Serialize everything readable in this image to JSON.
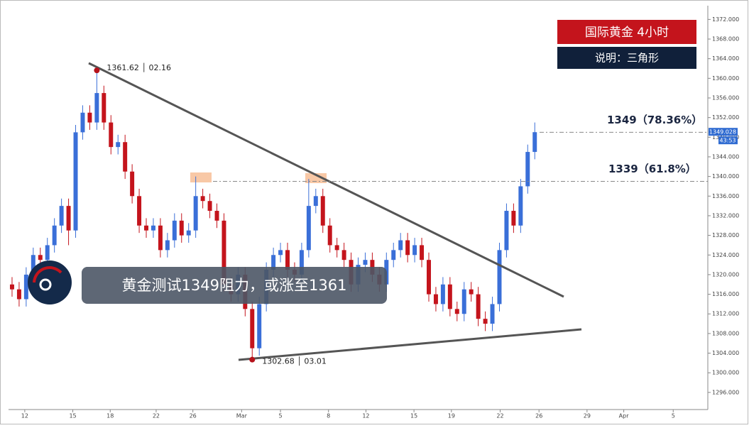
{
  "chart_data": {
    "type": "candlestick",
    "title": "国际黄金  4小时",
    "subtitle": "说明：三角形",
    "headline": "黄金测试1349阻力，或涨至1361",
    "x": [
      0,
      1,
      2,
      3,
      4,
      5,
      6,
      7,
      8,
      9,
      10,
      11,
      12,
      13,
      14,
      15,
      16,
      17,
      18,
      19,
      20,
      21,
      22,
      23,
      24,
      25,
      26,
      27,
      28,
      29,
      30,
      31,
      32,
      33,
      34,
      35,
      36,
      37,
      38,
      39,
      40,
      41,
      42,
      43,
      44,
      45,
      46,
      47,
      48,
      49,
      50,
      51,
      52,
      53,
      54,
      55,
      56,
      57,
      58,
      59,
      60,
      61,
      62,
      63,
      64,
      65,
      66,
      67,
      68,
      69,
      70,
      71,
      72,
      73,
      74
    ],
    "open": [
      1318,
      1317,
      1315,
      1320,
      1324,
      1323,
      1326,
      1330,
      1334,
      1329,
      1349,
      1353,
      1351,
      1357,
      1351,
      1346,
      1347,
      1341,
      1336,
      1330,
      1329,
      1330,
      1325,
      1327,
      1331,
      1328,
      1329,
      1336,
      1335,
      1333,
      1331,
      1318,
      1316,
      1320,
      1313,
      1305,
      1314,
      1321,
      1324,
      1325,
      1321,
      1320,
      1325,
      1334,
      1336,
      1330,
      1326,
      1325,
      1323,
      1318,
      1322,
      1323,
      1320,
      1318,
      1323,
      1325,
      1327,
      1324,
      1326,
      1323,
      1316,
      1314,
      1318,
      1313,
      1312,
      1317,
      1316,
      1311,
      1310,
      1314,
      1325,
      1333,
      1330,
      1338,
      1345
    ],
    "high": [
      1319.5,
      1318.5,
      1321.5,
      1325.5,
      1325.5,
      1327.5,
      1331.5,
      1335.5,
      1335.5,
      1350.5,
      1354.5,
      1354.5,
      1361.62,
      1358.5,
      1352.5,
      1348.5,
      1348.5,
      1342.5,
      1337.5,
      1331.5,
      1331.5,
      1331.5,
      1328.5,
      1332.5,
      1332.5,
      1330.5,
      1340,
      1337.5,
      1336.5,
      1334.5,
      1332.5,
      1319.5,
      1321.5,
      1321.5,
      1314.5,
      1315.5,
      1322.5,
      1325.5,
      1326.5,
      1326.5,
      1322.5,
      1326.5,
      1339.5,
      1337.5,
      1337.5,
      1331.5,
      1327.5,
      1326.5,
      1324.5,
      1323.5,
      1324.5,
      1324.5,
      1321.5,
      1324.5,
      1326.5,
      1328.5,
      1328.5,
      1327.5,
      1327.5,
      1324.5,
      1317.5,
      1319.5,
      1319.5,
      1314.5,
      1318.5,
      1318.5,
      1317.5,
      1312.5,
      1315.5,
      1326.5,
      1334.5,
      1334.5,
      1339.5,
      1346.5,
      1351
    ],
    "low": [
      1315.5,
      1313.5,
      1313.5,
      1318.5,
      1321.5,
      1321.5,
      1324.5,
      1328.5,
      1326,
      1327.5,
      1347.5,
      1349.5,
      1349.5,
      1349.5,
      1344.5,
      1344.5,
      1339.5,
      1334.5,
      1328.5,
      1327.5,
      1327.5,
      1323.5,
      1323.5,
      1325.5,
      1326.5,
      1326.5,
      1327.5,
      1333.5,
      1331.5,
      1329.5,
      1316.5,
      1314.5,
      1314.5,
      1311.5,
      1302.68,
      1303.5,
      1312.5,
      1319.5,
      1322.5,
      1319.5,
      1318.5,
      1318.5,
      1323.5,
      1332.5,
      1328.5,
      1324.5,
      1323.5,
      1321.5,
      1316.5,
      1316.5,
      1320.5,
      1318.5,
      1316.5,
      1316.5,
      1321.5,
      1323.5,
      1322.5,
      1322.5,
      1321.5,
      1314.5,
      1312.5,
      1312.5,
      1311.5,
      1310.5,
      1310.5,
      1314.5,
      1309.5,
      1308.5,
      1308.5,
      1312.5,
      1323.5,
      1328.5,
      1328.5,
      1336.5,
      1343.5
    ],
    "close": [
      1317,
      1315,
      1320,
      1324,
      1323,
      1326,
      1330,
      1334,
      1329,
      1349,
      1353,
      1351,
      1357,
      1351,
      1346,
      1347,
      1341,
      1336,
      1330,
      1329,
      1330,
      1325,
      1327,
      1331,
      1328,
      1329,
      1336,
      1335,
      1333,
      1331,
      1318,
      1316,
      1320,
      1313,
      1305,
      1314,
      1321,
      1324,
      1325,
      1321,
      1320,
      1325,
      1334,
      1336,
      1330,
      1326,
      1325,
      1323,
      1318,
      1322,
      1323,
      1320,
      1318,
      1323,
      1325,
      1327,
      1324,
      1326,
      1323,
      1316,
      1314,
      1318,
      1313,
      1312,
      1317,
      1316,
      1311,
      1310,
      1314,
      1325,
      1333,
      1330,
      1338,
      1345,
      1349.028
    ],
    "up_color": "#3a6fd8",
    "down_color": "#c4141c",
    "xlim": [
      -0.5,
      98.5
    ],
    "xticks": [
      {
        "value": 1.8,
        "label": "12"
      },
      {
        "value": 8.6,
        "label": "15"
      },
      {
        "value": 13.9,
        "label": "18"
      },
      {
        "value": 20.4,
        "label": "22"
      },
      {
        "value": 25.6,
        "label": "26"
      },
      {
        "value": 32.5,
        "label": "Mar"
      },
      {
        "value": 38.0,
        "label": "5"
      },
      {
        "value": 44.8,
        "label": "8"
      },
      {
        "value": 50.1,
        "label": "12"
      },
      {
        "value": 56.9,
        "label": "15"
      },
      {
        "value": 62.2,
        "label": "19"
      },
      {
        "value": 69.1,
        "label": "22"
      },
      {
        "value": 74.6,
        "label": "26"
      },
      {
        "value": 81.4,
        "label": "29"
      },
      {
        "value": 86.6,
        "label": "Apr"
      },
      {
        "value": 93.6,
        "label": "5"
      }
    ],
    "ylim": [
      1292.8,
      1374.8
    ],
    "yticks": [
      {
        "value": 1296,
        "label": "1296.000"
      },
      {
        "value": 1300,
        "label": "1300.000"
      },
      {
        "value": 1304,
        "label": "1304.000"
      },
      {
        "value": 1308,
        "label": "1308.000"
      },
      {
        "value": 1312,
        "label": "1312.000"
      },
      {
        "value": 1316,
        "label": "1316.000"
      },
      {
        "value": 1320,
        "label": "1320.000"
      },
      {
        "value": 1324,
        "label": "1324.000"
      },
      {
        "value": 1328,
        "label": "1328.000"
      },
      {
        "value": 1332,
        "label": "1332.000"
      },
      {
        "value": 1336,
        "label": "1336.000"
      },
      {
        "value": 1340,
        "label": "1340.000"
      },
      {
        "value": 1344,
        "label": "1344.000"
      },
      {
        "value": 1348,
        "label": "1348.000"
      },
      {
        "value": 1352,
        "label": "1352.000"
      },
      {
        "value": 1356,
        "label": "1356.000"
      },
      {
        "value": 1360,
        "label": "1360.000"
      },
      {
        "value": 1364,
        "label": "1364.000"
      },
      {
        "value": 1368,
        "label": "1368.000"
      },
      {
        "value": 1372,
        "label": "1372.000"
      }
    ],
    "levels": [
      {
        "value": 1349,
        "label": "1349（78.36%）"
      },
      {
        "value": 1339,
        "label": "1339（61.8%）"
      }
    ],
    "peak": {
      "index": 12,
      "label": "1361.62 │ 02.16"
    },
    "trough": {
      "index": 34,
      "label": "1302.68 │ 03.01"
    },
    "countdown": "43:53"
  }
}
